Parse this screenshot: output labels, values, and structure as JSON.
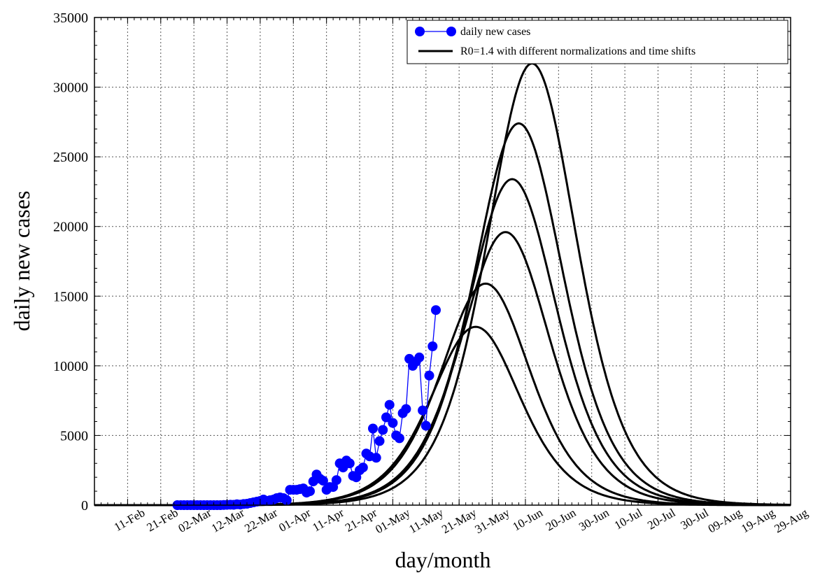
{
  "chart_data": {
    "type": "line",
    "xlabel": "day/month",
    "ylabel": "daily new cases",
    "x_axis_kind": "date",
    "xlim": [
      "2020-02-01",
      "2020-08-29"
    ],
    "ylim": [
      0,
      35000
    ],
    "grid": true,
    "legend_position": "top-right",
    "y_ticks": [
      0,
      5000,
      10000,
      15000,
      20000,
      25000,
      30000,
      35000
    ],
    "x_ticks": [
      {
        "date": "2020-02-11",
        "label": "11-Feb"
      },
      {
        "date": "2020-02-21",
        "label": "21-Feb"
      },
      {
        "date": "2020-03-02",
        "label": "02-Mar"
      },
      {
        "date": "2020-03-12",
        "label": "12-Mar"
      },
      {
        "date": "2020-03-22",
        "label": "22-Mar"
      },
      {
        "date": "2020-04-01",
        "label": "01-Apr"
      },
      {
        "date": "2020-04-11",
        "label": "11-Apr"
      },
      {
        "date": "2020-04-21",
        "label": "21-Apr"
      },
      {
        "date": "2020-05-01",
        "label": "01-May"
      },
      {
        "date": "2020-05-11",
        "label": "11-May"
      },
      {
        "date": "2020-05-21",
        "label": "21-May"
      },
      {
        "date": "2020-05-31",
        "label": "31-May"
      },
      {
        "date": "2020-06-10",
        "label": "10-Jun"
      },
      {
        "date": "2020-06-20",
        "label": "20-Jun"
      },
      {
        "date": "2020-06-30",
        "label": "30-Jun"
      },
      {
        "date": "2020-07-10",
        "label": "10-Jul"
      },
      {
        "date": "2020-07-20",
        "label": "20-Jul"
      },
      {
        "date": "2020-07-30",
        "label": "30-Jul"
      },
      {
        "date": "2020-08-09",
        "label": "09-Aug"
      },
      {
        "date": "2020-08-19",
        "label": "19-Aug"
      },
      {
        "date": "2020-08-29",
        "label": "29-Aug"
      }
    ],
    "series": [
      {
        "name": "daily new cases",
        "style": "markers-line",
        "color": "#0000ff",
        "points": [
          [
            "2020-02-26",
            0
          ],
          [
            "2020-02-27",
            0
          ],
          [
            "2020-02-28",
            0
          ],
          [
            "2020-02-29",
            0
          ],
          [
            "2020-03-01",
            0
          ],
          [
            "2020-03-02",
            0
          ],
          [
            "2020-03-03",
            0
          ],
          [
            "2020-03-04",
            0
          ],
          [
            "2020-03-05",
            0
          ],
          [
            "2020-03-06",
            0
          ],
          [
            "2020-03-07",
            0
          ],
          [
            "2020-03-08",
            0
          ],
          [
            "2020-03-09",
            0
          ],
          [
            "2020-03-10",
            0
          ],
          [
            "2020-03-11",
            10
          ],
          [
            "2020-03-12",
            20
          ],
          [
            "2020-03-13",
            30
          ],
          [
            "2020-03-14",
            25
          ],
          [
            "2020-03-15",
            60
          ],
          [
            "2020-03-16",
            40
          ],
          [
            "2020-03-17",
            80
          ],
          [
            "2020-03-18",
            100
          ],
          [
            "2020-03-19",
            150
          ],
          [
            "2020-03-20",
            200
          ],
          [
            "2020-03-21",
            250
          ],
          [
            "2020-03-22",
            300
          ],
          [
            "2020-03-23",
            400
          ],
          [
            "2020-03-24",
            300
          ],
          [
            "2020-03-25",
            350
          ],
          [
            "2020-03-26",
            400
          ],
          [
            "2020-03-27",
            500
          ],
          [
            "2020-03-28",
            550
          ],
          [
            "2020-03-29",
            500
          ],
          [
            "2020-03-30",
            350
          ],
          [
            "2020-03-31",
            1100
          ],
          [
            "2020-04-01",
            1100
          ],
          [
            "2020-04-02",
            1100
          ],
          [
            "2020-04-03",
            1150
          ],
          [
            "2020-04-04",
            1200
          ],
          [
            "2020-04-05",
            900
          ],
          [
            "2020-04-06",
            1000
          ],
          [
            "2020-04-07",
            1700
          ],
          [
            "2020-04-08",
            2200
          ],
          [
            "2020-04-09",
            1900
          ],
          [
            "2020-04-10",
            1750
          ],
          [
            "2020-04-11",
            1100
          ],
          [
            "2020-04-12",
            1300
          ],
          [
            "2020-04-13",
            1300
          ],
          [
            "2020-04-14",
            1800
          ],
          [
            "2020-04-15",
            3000
          ],
          [
            "2020-04-16",
            2700
          ],
          [
            "2020-04-17",
            3200
          ],
          [
            "2020-04-18",
            3000
          ],
          [
            "2020-04-19",
            2100
          ],
          [
            "2020-04-20",
            2000
          ],
          [
            "2020-04-21",
            2500
          ],
          [
            "2020-04-22",
            2700
          ],
          [
            "2020-04-23",
            3700
          ],
          [
            "2020-04-24",
            3500
          ],
          [
            "2020-04-25",
            5500
          ],
          [
            "2020-04-26",
            3400
          ],
          [
            "2020-04-27",
            4600
          ],
          [
            "2020-04-28",
            5400
          ],
          [
            "2020-04-29",
            6300
          ],
          [
            "2020-04-30",
            7200
          ],
          [
            "2020-05-01",
            5900
          ],
          [
            "2020-05-02",
            5000
          ],
          [
            "2020-05-03",
            4800
          ],
          [
            "2020-05-04",
            6600
          ],
          [
            "2020-05-05",
            6900
          ],
          [
            "2020-05-06",
            10500
          ],
          [
            "2020-05-07",
            10000
          ],
          [
            "2020-05-08",
            10300
          ],
          [
            "2020-05-09",
            10600
          ],
          [
            "2020-05-10",
            6800
          ],
          [
            "2020-05-11",
            5700
          ],
          [
            "2020-05-12",
            9300
          ],
          [
            "2020-05-13",
            11400
          ],
          [
            "2020-05-14",
            14000
          ]
        ]
      },
      {
        "name": "R0=1.4 with different normalizations and time shifts",
        "style": "line",
        "color": "#000000",
        "curves": [
          {
            "peak_date": "2020-05-26",
            "peak": 12800
          },
          {
            "peak_date": "2020-05-29",
            "peak": 15900
          },
          {
            "peak_date": "2020-06-04",
            "peak": 19600
          },
          {
            "peak_date": "2020-06-06",
            "peak": 23400
          },
          {
            "peak_date": "2020-06-08",
            "peak": 27400
          },
          {
            "peak_date": "2020-06-12",
            "peak": 31700
          }
        ]
      }
    ]
  }
}
